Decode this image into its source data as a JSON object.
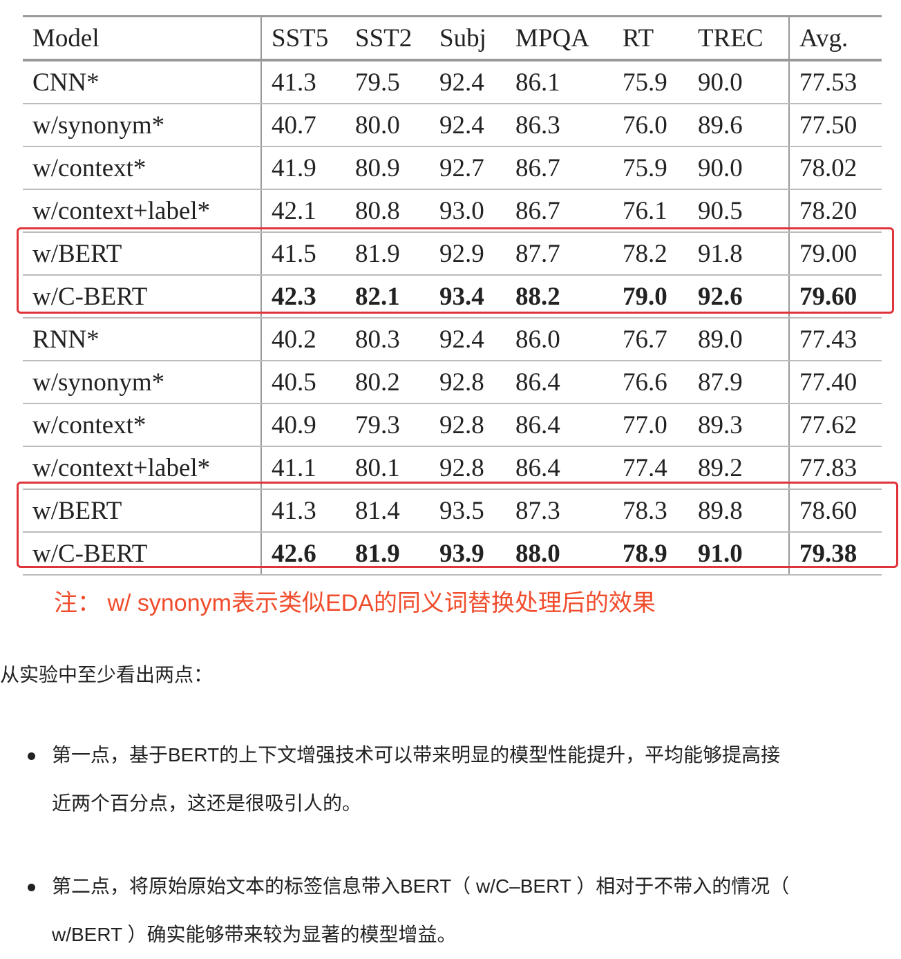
{
  "table": {
    "headers": [
      "Model",
      "SST5",
      "SST2",
      "Subj",
      "MPQA",
      "RT",
      "TREC",
      "Avg."
    ],
    "rows": [
      {
        "cells": [
          "CNN*",
          "41.3",
          "79.5",
          "92.4",
          "86.1",
          "75.9",
          "90.0",
          "77.53"
        ],
        "bold": false
      },
      {
        "cells": [
          "w/synonym*",
          "40.7",
          "80.0",
          "92.4",
          "86.3",
          "76.0",
          "89.6",
          "77.50"
        ],
        "bold": false
      },
      {
        "cells": [
          "w/context*",
          "41.9",
          "80.9",
          "92.7",
          "86.7",
          "75.9",
          "90.0",
          "78.02"
        ],
        "bold": false
      },
      {
        "cells": [
          "w/context+label*",
          "42.1",
          "80.8",
          "93.0",
          "86.7",
          "76.1",
          "90.5",
          "78.20"
        ],
        "bold": false
      },
      {
        "cells": [
          "w/BERT",
          "41.5",
          "81.9",
          "92.9",
          "87.7",
          "78.2",
          "91.8",
          "79.00"
        ],
        "bold": false
      },
      {
        "cells": [
          "w/C-BERT",
          "42.3",
          "82.1",
          "93.4",
          "88.2",
          "79.0",
          "92.6",
          "79.60"
        ],
        "bold": true
      },
      {
        "cells": [
          "RNN*",
          "40.2",
          "80.3",
          "92.4",
          "86.0",
          "76.7",
          "89.0",
          "77.43"
        ],
        "bold": false
      },
      {
        "cells": [
          "w/synonym*",
          "40.5",
          "80.2",
          "92.8",
          "86.4",
          "76.6",
          "87.9",
          "77.40"
        ],
        "bold": false
      },
      {
        "cells": [
          "w/context*",
          "40.9",
          "79.3",
          "92.8",
          "86.4",
          "77.0",
          "89.3",
          "77.62"
        ],
        "bold": false
      },
      {
        "cells": [
          "w/context+label*",
          "41.1",
          "80.1",
          "92.8",
          "86.4",
          "77.4",
          "89.2",
          "77.83"
        ],
        "bold": false
      },
      {
        "cells": [
          "w/BERT",
          "41.3",
          "81.4",
          "93.5",
          "87.3",
          "78.3",
          "89.8",
          "78.60"
        ],
        "bold": false
      },
      {
        "cells": [
          "w/C-BERT",
          "42.6",
          "81.9",
          "93.9",
          "88.0",
          "78.9",
          "91.0",
          "79.38"
        ],
        "bold": true
      }
    ],
    "highlight_color": "#e0333a"
  },
  "note": "注： w/ synonym表示类似EDA的同义词替换处理后的效果",
  "intro": "从实验中至少看出两点：",
  "bullets": [
    {
      "line1": "第一点，基于BERT的上下文增强技术可以带来明显的模型性能提升，平均能够提高接",
      "line2": "近两个百分点，这还是很吸引人的。"
    },
    {
      "line1": "第二点，将原始原始文本的标签信息带入BERT（ w/C–BERT ）相对于不带入的情况（",
      "line2": "w/BERT ）确实能够带来较为显著的模型增益。"
    }
  ]
}
